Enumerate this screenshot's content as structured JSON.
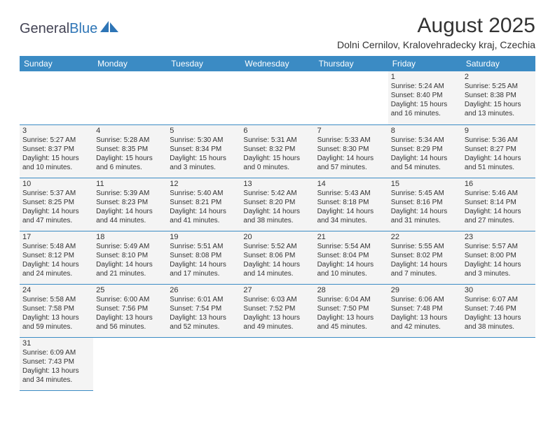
{
  "logo": {
    "text1": "General",
    "text2": "Blue"
  },
  "title": "August 2025",
  "location": "Dolni Cernilov, Kralovehradecky kraj, Czechia",
  "colors": {
    "header_bg": "#3b8bc4",
    "header_fg": "#ffffff",
    "cell_bg": "#f4f4f4",
    "empty_bg": "#ffffff",
    "border": "#3b8bc4",
    "text": "#333333",
    "logo_blue": "#2e75b6"
  },
  "weekdays": [
    "Sunday",
    "Monday",
    "Tuesday",
    "Wednesday",
    "Thursday",
    "Friday",
    "Saturday"
  ],
  "weeks": [
    [
      null,
      null,
      null,
      null,
      null,
      {
        "n": "1",
        "sr": "Sunrise: 5:24 AM",
        "ss": "Sunset: 8:40 PM",
        "d1": "Daylight: 15 hours",
        "d2": "and 16 minutes."
      },
      {
        "n": "2",
        "sr": "Sunrise: 5:25 AM",
        "ss": "Sunset: 8:38 PM",
        "d1": "Daylight: 15 hours",
        "d2": "and 13 minutes."
      }
    ],
    [
      {
        "n": "3",
        "sr": "Sunrise: 5:27 AM",
        "ss": "Sunset: 8:37 PM",
        "d1": "Daylight: 15 hours",
        "d2": "and 10 minutes."
      },
      {
        "n": "4",
        "sr": "Sunrise: 5:28 AM",
        "ss": "Sunset: 8:35 PM",
        "d1": "Daylight: 15 hours",
        "d2": "and 6 minutes."
      },
      {
        "n": "5",
        "sr": "Sunrise: 5:30 AM",
        "ss": "Sunset: 8:34 PM",
        "d1": "Daylight: 15 hours",
        "d2": "and 3 minutes."
      },
      {
        "n": "6",
        "sr": "Sunrise: 5:31 AM",
        "ss": "Sunset: 8:32 PM",
        "d1": "Daylight: 15 hours",
        "d2": "and 0 minutes."
      },
      {
        "n": "7",
        "sr": "Sunrise: 5:33 AM",
        "ss": "Sunset: 8:30 PM",
        "d1": "Daylight: 14 hours",
        "d2": "and 57 minutes."
      },
      {
        "n": "8",
        "sr": "Sunrise: 5:34 AM",
        "ss": "Sunset: 8:29 PM",
        "d1": "Daylight: 14 hours",
        "d2": "and 54 minutes."
      },
      {
        "n": "9",
        "sr": "Sunrise: 5:36 AM",
        "ss": "Sunset: 8:27 PM",
        "d1": "Daylight: 14 hours",
        "d2": "and 51 minutes."
      }
    ],
    [
      {
        "n": "10",
        "sr": "Sunrise: 5:37 AM",
        "ss": "Sunset: 8:25 PM",
        "d1": "Daylight: 14 hours",
        "d2": "and 47 minutes."
      },
      {
        "n": "11",
        "sr": "Sunrise: 5:39 AM",
        "ss": "Sunset: 8:23 PM",
        "d1": "Daylight: 14 hours",
        "d2": "and 44 minutes."
      },
      {
        "n": "12",
        "sr": "Sunrise: 5:40 AM",
        "ss": "Sunset: 8:21 PM",
        "d1": "Daylight: 14 hours",
        "d2": "and 41 minutes."
      },
      {
        "n": "13",
        "sr": "Sunrise: 5:42 AM",
        "ss": "Sunset: 8:20 PM",
        "d1": "Daylight: 14 hours",
        "d2": "and 38 minutes."
      },
      {
        "n": "14",
        "sr": "Sunrise: 5:43 AM",
        "ss": "Sunset: 8:18 PM",
        "d1": "Daylight: 14 hours",
        "d2": "and 34 minutes."
      },
      {
        "n": "15",
        "sr": "Sunrise: 5:45 AM",
        "ss": "Sunset: 8:16 PM",
        "d1": "Daylight: 14 hours",
        "d2": "and 31 minutes."
      },
      {
        "n": "16",
        "sr": "Sunrise: 5:46 AM",
        "ss": "Sunset: 8:14 PM",
        "d1": "Daylight: 14 hours",
        "d2": "and 27 minutes."
      }
    ],
    [
      {
        "n": "17",
        "sr": "Sunrise: 5:48 AM",
        "ss": "Sunset: 8:12 PM",
        "d1": "Daylight: 14 hours",
        "d2": "and 24 minutes."
      },
      {
        "n": "18",
        "sr": "Sunrise: 5:49 AM",
        "ss": "Sunset: 8:10 PM",
        "d1": "Daylight: 14 hours",
        "d2": "and 21 minutes."
      },
      {
        "n": "19",
        "sr": "Sunrise: 5:51 AM",
        "ss": "Sunset: 8:08 PM",
        "d1": "Daylight: 14 hours",
        "d2": "and 17 minutes."
      },
      {
        "n": "20",
        "sr": "Sunrise: 5:52 AM",
        "ss": "Sunset: 8:06 PM",
        "d1": "Daylight: 14 hours",
        "d2": "and 14 minutes."
      },
      {
        "n": "21",
        "sr": "Sunrise: 5:54 AM",
        "ss": "Sunset: 8:04 PM",
        "d1": "Daylight: 14 hours",
        "d2": "and 10 minutes."
      },
      {
        "n": "22",
        "sr": "Sunrise: 5:55 AM",
        "ss": "Sunset: 8:02 PM",
        "d1": "Daylight: 14 hours",
        "d2": "and 7 minutes."
      },
      {
        "n": "23",
        "sr": "Sunrise: 5:57 AM",
        "ss": "Sunset: 8:00 PM",
        "d1": "Daylight: 14 hours",
        "d2": "and 3 minutes."
      }
    ],
    [
      {
        "n": "24",
        "sr": "Sunrise: 5:58 AM",
        "ss": "Sunset: 7:58 PM",
        "d1": "Daylight: 13 hours",
        "d2": "and 59 minutes."
      },
      {
        "n": "25",
        "sr": "Sunrise: 6:00 AM",
        "ss": "Sunset: 7:56 PM",
        "d1": "Daylight: 13 hours",
        "d2": "and 56 minutes."
      },
      {
        "n": "26",
        "sr": "Sunrise: 6:01 AM",
        "ss": "Sunset: 7:54 PM",
        "d1": "Daylight: 13 hours",
        "d2": "and 52 minutes."
      },
      {
        "n": "27",
        "sr": "Sunrise: 6:03 AM",
        "ss": "Sunset: 7:52 PM",
        "d1": "Daylight: 13 hours",
        "d2": "and 49 minutes."
      },
      {
        "n": "28",
        "sr": "Sunrise: 6:04 AM",
        "ss": "Sunset: 7:50 PM",
        "d1": "Daylight: 13 hours",
        "d2": "and 45 minutes."
      },
      {
        "n": "29",
        "sr": "Sunrise: 6:06 AM",
        "ss": "Sunset: 7:48 PM",
        "d1": "Daylight: 13 hours",
        "d2": "and 42 minutes."
      },
      {
        "n": "30",
        "sr": "Sunrise: 6:07 AM",
        "ss": "Sunset: 7:46 PM",
        "d1": "Daylight: 13 hours",
        "d2": "and 38 minutes."
      }
    ],
    [
      {
        "n": "31",
        "sr": "Sunrise: 6:09 AM",
        "ss": "Sunset: 7:43 PM",
        "d1": "Daylight: 13 hours",
        "d2": "and 34 minutes."
      },
      null,
      null,
      null,
      null,
      null,
      null
    ]
  ]
}
